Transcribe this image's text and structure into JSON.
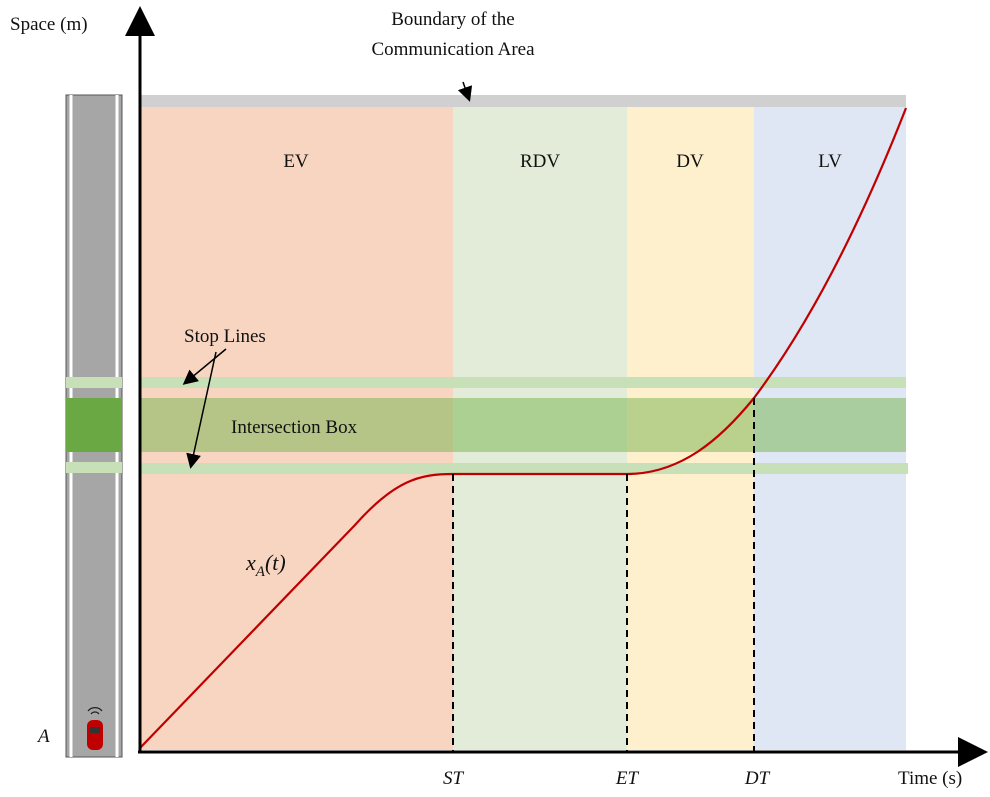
{
  "axes": {
    "y_label": "Space (m)",
    "x_label": "Time (s)"
  },
  "annotations": {
    "boundary": [
      "Boundary of the",
      "Communication Area"
    ],
    "stop_lines": "Stop Lines",
    "intersection_box": "Intersection Box"
  },
  "zones": [
    "EV",
    "RDV",
    "DV",
    "LV"
  ],
  "time_marks": [
    "ST",
    "ET",
    "DT"
  ],
  "vehicle": "A",
  "trajectory": {
    "symbol": "x",
    "subscript": "A",
    "argument": "(t)"
  }
}
